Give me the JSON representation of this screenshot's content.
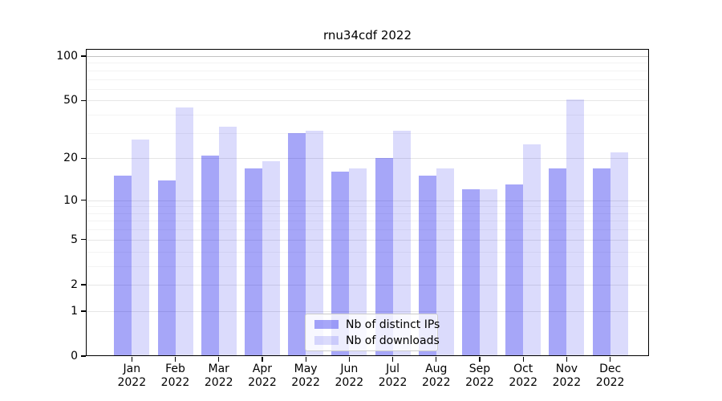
{
  "title": "rnu34cdf 2022",
  "chart_data": {
    "type": "bar",
    "title": "rnu34cdf 2022",
    "categories": [
      "Jan",
      "Feb",
      "Mar",
      "Apr",
      "May",
      "Jun",
      "Jul",
      "Aug",
      "Sep",
      "Oct",
      "Nov",
      "Dec"
    ],
    "x_tick_second_line": "2022",
    "series": [
      {
        "name": "Nb of distinct IPs",
        "color": "#0808ec",
        "alpha": 0.36,
        "values": [
          15,
          14,
          21,
          17,
          30,
          16,
          20,
          15,
          12,
          13,
          17,
          17
        ]
      },
      {
        "name": "Nb of downloads",
        "color": "#0808ec",
        "alpha": 0.145,
        "values": [
          27,
          45,
          33,
          19,
          31,
          17,
          31,
          17,
          12,
          25,
          51,
          22
        ]
      }
    ],
    "yscale": "log1p",
    "ylim": [
      0,
      112
    ],
    "yticks": [
      100,
      50,
      20,
      10,
      5,
      2,
      1,
      0
    ],
    "minor_grid_values": [
      3,
      4,
      6,
      7,
      8,
      9,
      30,
      40,
      60,
      70,
      80,
      90
    ],
    "grid": true,
    "legend_position": "lower center",
    "xlabel": "",
    "ylabel": "",
    "colors": {
      "grid_major": "#e6e6e6",
      "grid_minor": "#f3f3f3",
      "grid_top": "#c2c2c2",
      "axis": "#000000"
    }
  }
}
